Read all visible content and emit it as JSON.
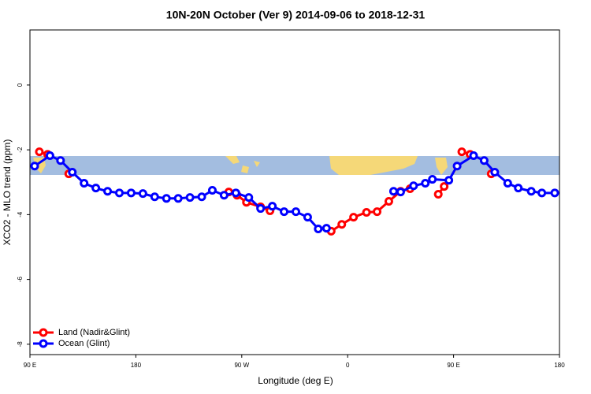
{
  "chart_data": {
    "type": "line",
    "title": "10N-20N October (Ver 9)   2014-09-06 to 2018-12-31",
    "xlabel": "Longitude (deg E)",
    "ylabel": "XCO2 - MLO trend (ppm)",
    "xlim": [
      90,
      540
    ],
    "ylim": [
      -8.32,
      1.7
    ],
    "xticks": [
      {
        "value": 90,
        "label": "90 E"
      },
      180,
      {
        "value": 270,
        "label": "90 W"
      },
      {
        "value": 360,
        "label": "0"
      },
      {
        "value": 450,
        "label": "90 E"
      },
      {
        "value": 540,
        "label": "180"
      }
    ],
    "yticks": [
      0,
      -2,
      -4,
      -6,
      -8
    ],
    "legend": "bottom-left",
    "series": [
      {
        "name": "Land (Nadir&Glint)",
        "color": "#ff0000",
        "x": [
          98,
          105,
          114,
          123,
          250,
          259,
          266,
          274,
          286,
          294,
          340,
          346,
          355,
          365,
          376,
          385,
          395,
          405,
          413,
          425,
          437,
          442,
          450,
          457,
          464,
          473,
          482
        ],
        "values": [
          -2.06,
          -2.14,
          null,
          -2.74,
          null,
          -3.3,
          -3.4,
          -3.62,
          -3.76,
          -3.88,
          null,
          -4.51,
          -4.3,
          -4.08,
          -3.93,
          -3.91,
          -3.59,
          -3.28,
          -3.2,
          null,
          -3.37,
          -3.13,
          null,
          -2.06,
          -2.14,
          null,
          -2.74
        ]
      },
      {
        "name": "Ocean (Glint)",
        "color": "#0000ff",
        "x": [
          94,
          107,
          116,
          126,
          136,
          146,
          156,
          166,
          176,
          186,
          196,
          206,
          216,
          226,
          236,
          245,
          255,
          265,
          276,
          286,
          296,
          306,
          316,
          326,
          335,
          342,
          370,
          399,
          405,
          416,
          426,
          432,
          446,
          453,
          467,
          476,
          485,
          496,
          505,
          516,
          525,
          536
        ],
        "values": [
          -2.5,
          -2.18,
          -2.33,
          -2.69,
          -3.03,
          -3.18,
          -3.28,
          -3.33,
          -3.33,
          -3.35,
          -3.45,
          -3.5,
          -3.5,
          -3.47,
          -3.45,
          -3.25,
          -3.4,
          -3.33,
          -3.47,
          -3.81,
          -3.74,
          -3.91,
          -3.91,
          -4.08,
          -4.44,
          -4.42,
          null,
          -3.28,
          -3.3,
          -3.11,
          -3.03,
          -2.91,
          -2.94,
          -2.5,
          -2.18,
          -2.33,
          -2.69,
          -3.03,
          -3.18,
          -3.28,
          -3.33,
          -3.33
        ]
      }
    ]
  }
}
